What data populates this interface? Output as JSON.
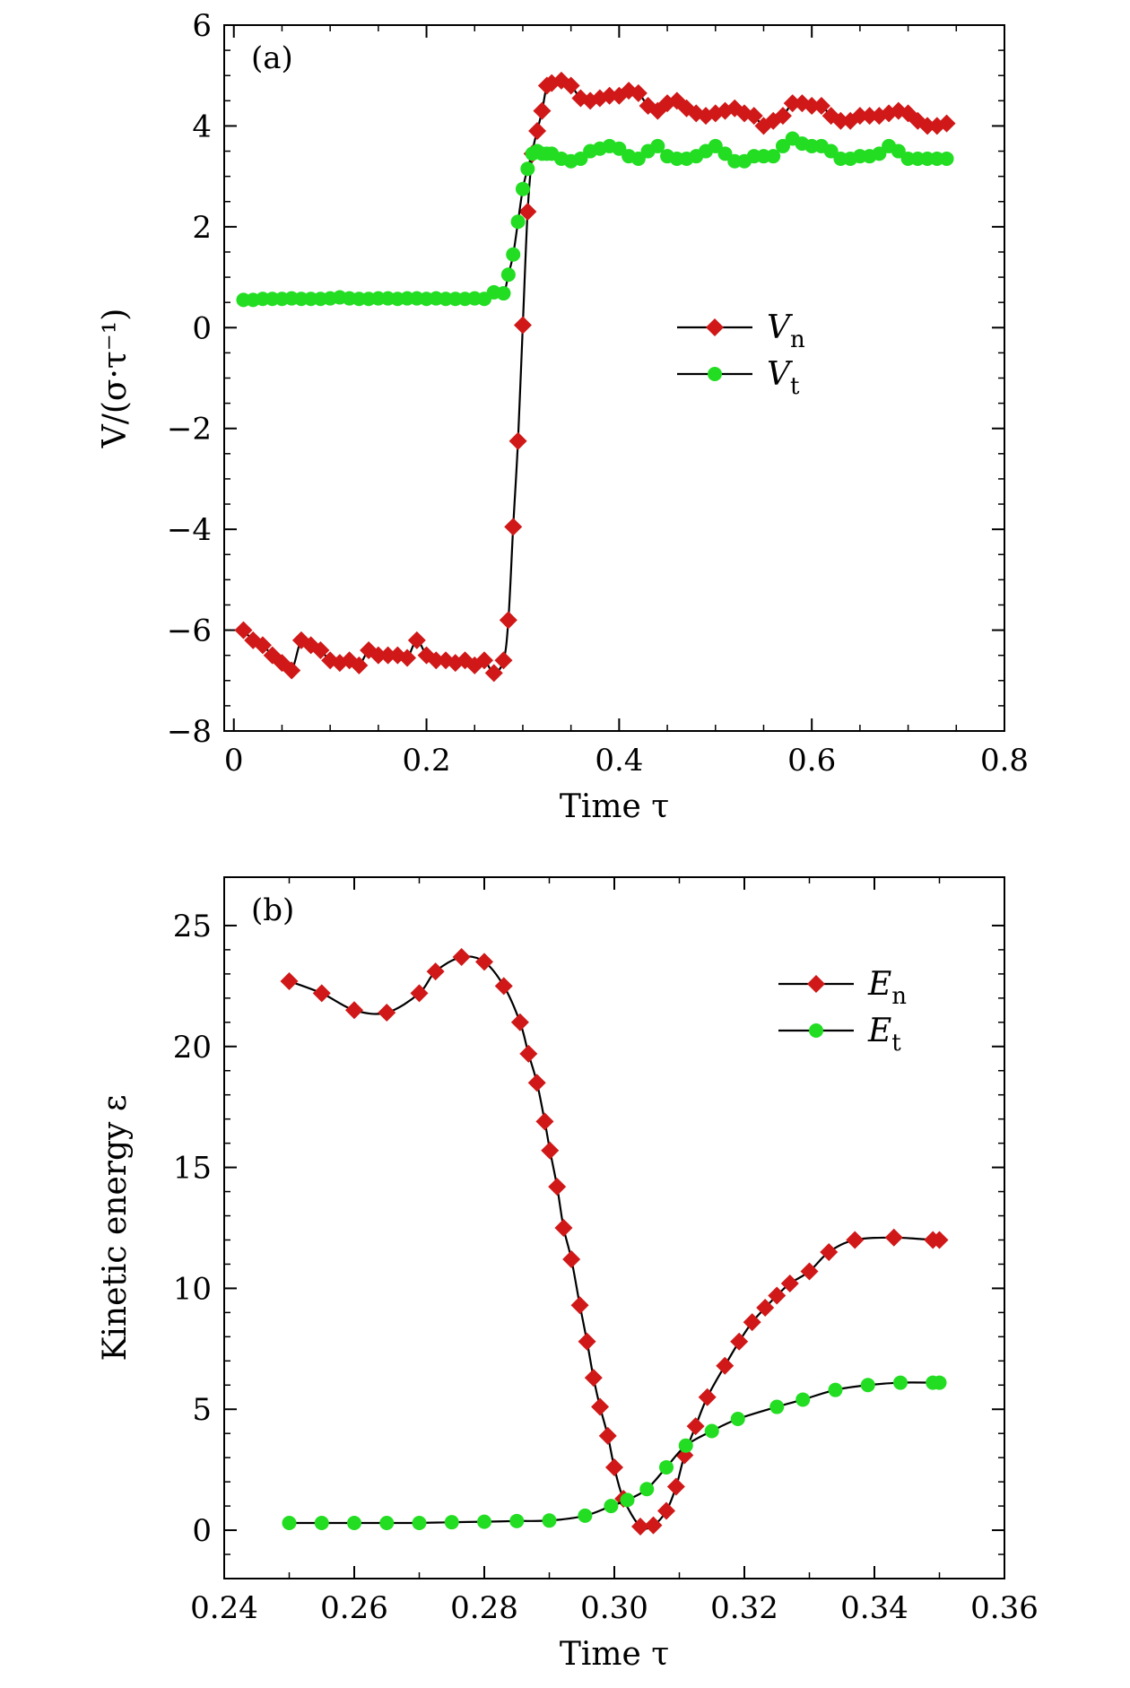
{
  "chart_data": [
    {
      "type": "line",
      "panel_label": "(a)",
      "xlabel": "Time τ",
      "ylabel": "V/(σ·τ⁻¹)",
      "xlim": [
        -0.01,
        0.8
      ],
      "ylim": [
        -8,
        6
      ],
      "xticks": [
        0,
        0.2,
        0.4,
        0.6,
        0.8
      ],
      "xtick_labels": [
        "0",
        "0.2",
        "0.4",
        "0.6",
        "0.8"
      ],
      "yticks": [
        -8,
        -6,
        -4,
        -2,
        0,
        2,
        4,
        6
      ],
      "ytick_labels": [
        "−8",
        "−6",
        "−4",
        "−2",
        "0",
        "2",
        "4",
        "6"
      ],
      "legend_position": "center-right",
      "series": [
        {
          "name": "V",
          "subscript": "n",
          "marker": "diamond",
          "color": "#d01818",
          "x": [
            0.01,
            0.02,
            0.03,
            0.04,
            0.05,
            0.06,
            0.07,
            0.08,
            0.09,
            0.1,
            0.11,
            0.12,
            0.13,
            0.14,
            0.15,
            0.16,
            0.17,
            0.18,
            0.19,
            0.2,
            0.21,
            0.22,
            0.23,
            0.24,
            0.25,
            0.26,
            0.27,
            0.28,
            0.285,
            0.29,
            0.295,
            0.3,
            0.305,
            0.31,
            0.315,
            0.32,
            0.325,
            0.33,
            0.34,
            0.35,
            0.36,
            0.37,
            0.38,
            0.39,
            0.4,
            0.41,
            0.42,
            0.43,
            0.44,
            0.45,
            0.46,
            0.47,
            0.48,
            0.49,
            0.5,
            0.51,
            0.52,
            0.53,
            0.54,
            0.55,
            0.56,
            0.57,
            0.58,
            0.59,
            0.6,
            0.61,
            0.62,
            0.63,
            0.64,
            0.65,
            0.66,
            0.67,
            0.68,
            0.69,
            0.7,
            0.71,
            0.72,
            0.73,
            0.74
          ],
          "y": [
            -6.0,
            -6.2,
            -6.3,
            -6.5,
            -6.65,
            -6.8,
            -6.2,
            -6.3,
            -6.4,
            -6.6,
            -6.65,
            -6.6,
            -6.7,
            -6.4,
            -6.5,
            -6.5,
            -6.5,
            -6.55,
            -6.2,
            -6.5,
            -6.6,
            -6.6,
            -6.65,
            -6.6,
            -6.7,
            -6.6,
            -6.85,
            -6.6,
            -5.8,
            -3.95,
            -2.25,
            0.05,
            2.3,
            3.45,
            3.9,
            4.3,
            4.8,
            4.85,
            4.9,
            4.8,
            4.55,
            4.5,
            4.55,
            4.6,
            4.6,
            4.7,
            4.65,
            4.4,
            4.3,
            4.45,
            4.5,
            4.35,
            4.25,
            4.2,
            4.25,
            4.3,
            4.35,
            4.25,
            4.2,
            4.0,
            4.1,
            4.2,
            4.45,
            4.45,
            4.4,
            4.4,
            4.2,
            4.1,
            4.1,
            4.2,
            4.2,
            4.2,
            4.25,
            4.3,
            4.25,
            4.1,
            4.0,
            4.0,
            4.05
          ]
        },
        {
          "name": "V",
          "subscript": "t",
          "marker": "circle",
          "color": "#22dd22",
          "x": [
            0.01,
            0.02,
            0.03,
            0.04,
            0.05,
            0.06,
            0.07,
            0.08,
            0.09,
            0.1,
            0.11,
            0.12,
            0.13,
            0.14,
            0.15,
            0.16,
            0.17,
            0.18,
            0.19,
            0.2,
            0.21,
            0.22,
            0.23,
            0.24,
            0.25,
            0.26,
            0.27,
            0.28,
            0.285,
            0.29,
            0.295,
            0.3,
            0.305,
            0.31,
            0.315,
            0.32,
            0.325,
            0.33,
            0.34,
            0.35,
            0.36,
            0.37,
            0.38,
            0.39,
            0.4,
            0.41,
            0.42,
            0.43,
            0.44,
            0.45,
            0.46,
            0.47,
            0.48,
            0.49,
            0.5,
            0.51,
            0.52,
            0.53,
            0.54,
            0.55,
            0.56,
            0.57,
            0.58,
            0.59,
            0.6,
            0.61,
            0.62,
            0.63,
            0.64,
            0.65,
            0.66,
            0.67,
            0.68,
            0.69,
            0.7,
            0.71,
            0.72,
            0.73,
            0.74
          ],
          "y": [
            0.55,
            0.55,
            0.57,
            0.57,
            0.57,
            0.58,
            0.57,
            0.57,
            0.57,
            0.58,
            0.6,
            0.58,
            0.57,
            0.57,
            0.58,
            0.58,
            0.57,
            0.58,
            0.58,
            0.57,
            0.58,
            0.57,
            0.57,
            0.57,
            0.58,
            0.57,
            0.7,
            0.68,
            1.05,
            1.45,
            2.1,
            2.75,
            3.15,
            3.45,
            3.5,
            3.45,
            3.45,
            3.45,
            3.35,
            3.3,
            3.35,
            3.5,
            3.55,
            3.6,
            3.55,
            3.4,
            3.35,
            3.5,
            3.6,
            3.4,
            3.35,
            3.35,
            3.4,
            3.5,
            3.6,
            3.45,
            3.3,
            3.3,
            3.4,
            3.4,
            3.4,
            3.6,
            3.75,
            3.65,
            3.6,
            3.6,
            3.5,
            3.35,
            3.35,
            3.4,
            3.4,
            3.45,
            3.6,
            3.5,
            3.35,
            3.35,
            3.35,
            3.35,
            3.35
          ]
        }
      ]
    },
    {
      "type": "line",
      "panel_label": "(b)",
      "xlabel": "Time τ",
      "ylabel": "Kinetic energy ε",
      "xlim": [
        0.24,
        0.36
      ],
      "ylim": [
        -2,
        27
      ],
      "xticks": [
        0.24,
        0.26,
        0.28,
        0.3,
        0.32,
        0.34,
        0.36
      ],
      "xtick_labels": [
        "0.24",
        "0.26",
        "0.28",
        "0.30",
        "0.32",
        "0.34",
        "0.36"
      ],
      "yticks": [
        0,
        5,
        10,
        15,
        20,
        25
      ],
      "ytick_labels": [
        "0",
        "5",
        "10",
        "15",
        "20",
        "25"
      ],
      "legend_position": "top-right",
      "series": [
        {
          "name": "E",
          "subscript": "n",
          "marker": "diamond",
          "color": "#d01818",
          "x": [
            0.25,
            0.255,
            0.26,
            0.265,
            0.27,
            0.2725,
            0.2765,
            0.28,
            0.283,
            0.2855,
            0.2868,
            0.2881,
            0.2893,
            0.2901,
            0.2912,
            0.2922,
            0.2934,
            0.2947,
            0.2958,
            0.2968,
            0.2978,
            0.299,
            0.3,
            0.3014,
            0.304,
            0.306,
            0.308,
            0.3095,
            0.3108,
            0.3125,
            0.3143,
            0.317,
            0.3192,
            0.3212,
            0.3232,
            0.325,
            0.327,
            0.33,
            0.333,
            0.337,
            0.343,
            0.349,
            0.35
          ],
          "y": [
            22.7,
            22.2,
            21.5,
            21.4,
            22.2,
            23.1,
            23.7,
            23.5,
            22.5,
            21.0,
            19.7,
            18.5,
            16.9,
            15.7,
            14.2,
            12.5,
            11.2,
            9.3,
            7.8,
            6.3,
            5.1,
            3.9,
            2.6,
            1.3,
            0.15,
            0.2,
            0.8,
            1.8,
            3.1,
            4.3,
            5.5,
            6.8,
            7.8,
            8.6,
            9.2,
            9.7,
            10.2,
            10.7,
            11.5,
            12.0,
            12.1,
            12.0,
            12.0
          ]
        },
        {
          "name": "E",
          "subscript": "t",
          "marker": "circle",
          "color": "#22dd22",
          "x": [
            0.25,
            0.255,
            0.26,
            0.265,
            0.27,
            0.275,
            0.28,
            0.285,
            0.29,
            0.2955,
            0.2995,
            0.302,
            0.305,
            0.308,
            0.311,
            0.315,
            0.319,
            0.325,
            0.329,
            0.334,
            0.339,
            0.344,
            0.349,
            0.35
          ],
          "y": [
            0.3,
            0.3,
            0.3,
            0.3,
            0.3,
            0.33,
            0.35,
            0.38,
            0.4,
            0.6,
            1.0,
            1.25,
            1.7,
            2.6,
            3.5,
            4.1,
            4.6,
            5.1,
            5.4,
            5.8,
            6.0,
            6.1,
            6.1,
            6.1
          ]
        }
      ]
    }
  ]
}
